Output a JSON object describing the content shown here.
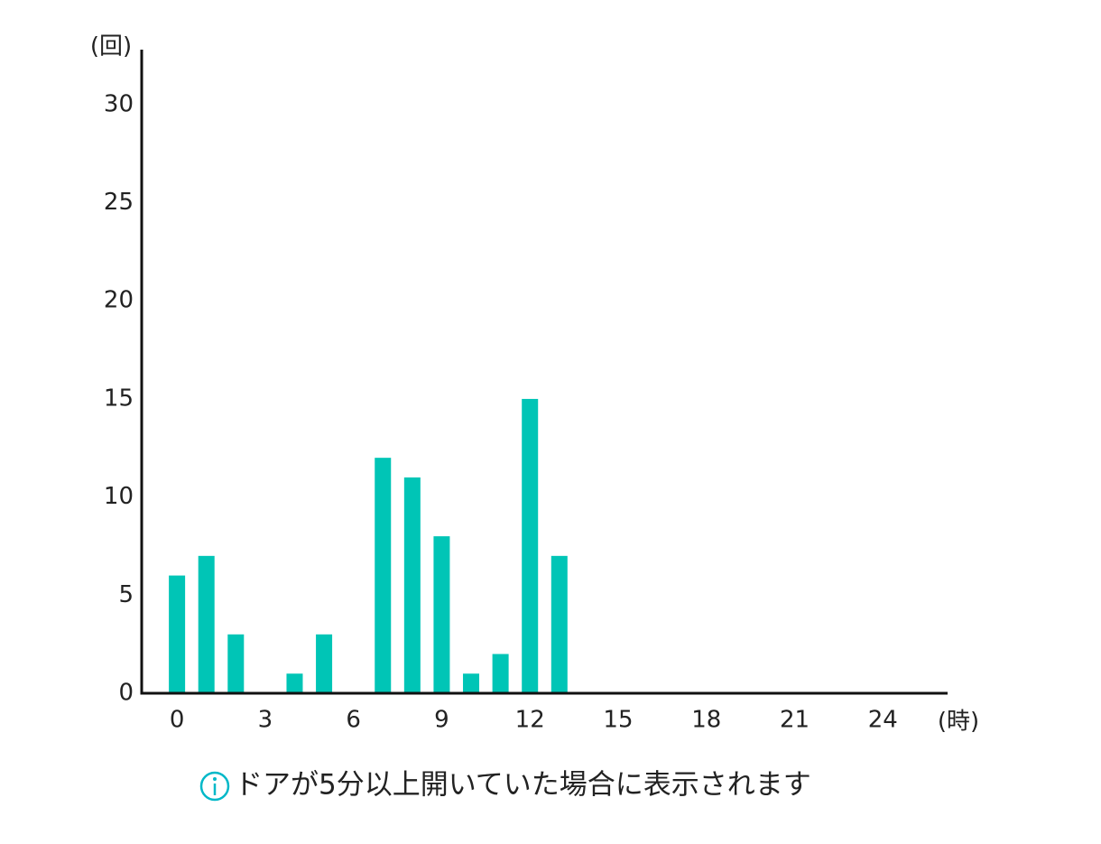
{
  "chart_data": {
    "type": "bar",
    "y_label": "(回)",
    "x_label": "(時)",
    "note": "ドアが5分以上開いていた場合に表示されます",
    "x": [
      0,
      1,
      2,
      3,
      4,
      5,
      6,
      7,
      8,
      9,
      10,
      11,
      12,
      13
    ],
    "values": [
      6,
      7,
      3,
      0,
      1,
      3,
      0,
      12,
      11,
      8,
      1,
      2,
      15,
      7
    ],
    "color": "#00c5b6",
    "xlim": [
      -1.2,
      26.2
    ],
    "xticks": [
      0,
      3,
      6,
      9,
      12,
      15,
      18,
      21,
      24
    ],
    "ylim": [
      0,
      32.8
    ],
    "yticks": [
      0,
      5,
      10,
      15,
      20,
      25,
      30
    ],
    "grid": false
  }
}
